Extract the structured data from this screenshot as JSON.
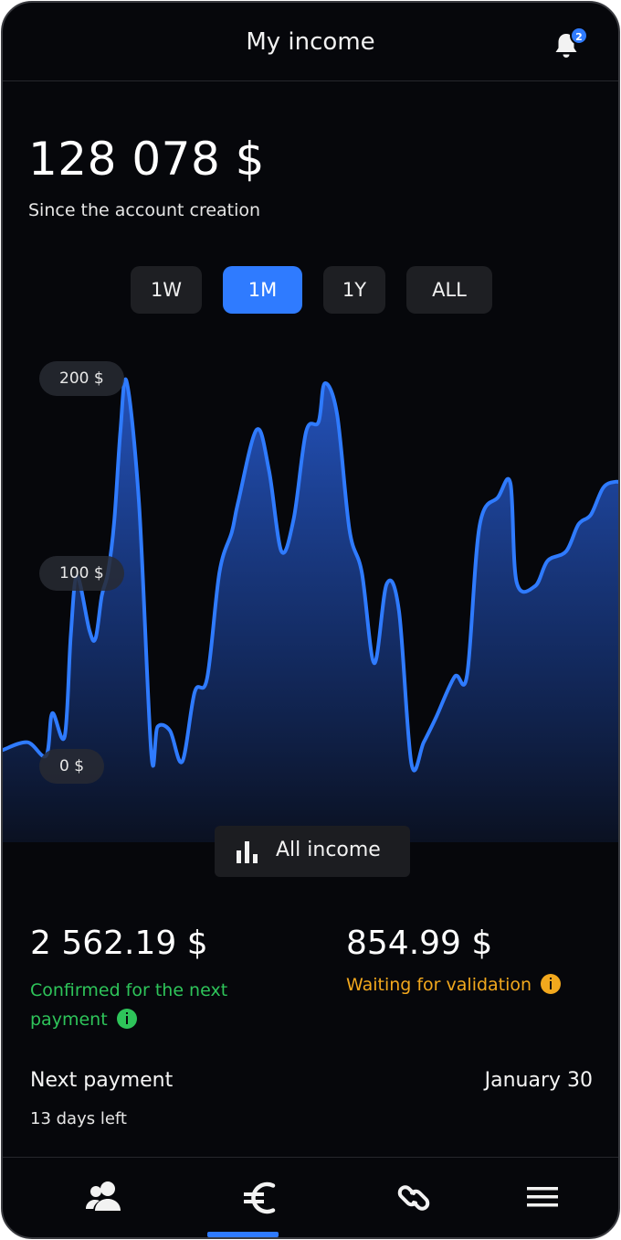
{
  "header": {
    "title": "My income",
    "notification_count": "2"
  },
  "summary": {
    "total": "128 078 $",
    "subtitle": "Since the account creation"
  },
  "range_tabs": [
    {
      "label": "1W",
      "active": false
    },
    {
      "label": "1M",
      "active": true
    },
    {
      "label": "1Y",
      "active": false
    },
    {
      "label": "ALL",
      "active": false
    }
  ],
  "chart_data": {
    "type": "area",
    "y_tick_labels": [
      "200 $",
      "100 $",
      "0 $"
    ],
    "ylim": [
      0,
      200
    ],
    "grid": false,
    "line_color": "#2f7bff",
    "points": [
      [
        0,
        8
      ],
      [
        4,
        12
      ],
      [
        7,
        5
      ],
      [
        8,
        27
      ],
      [
        10,
        15
      ],
      [
        11,
        68
      ],
      [
        12,
        98
      ],
      [
        14,
        70
      ],
      [
        15,
        66
      ],
      [
        16,
        88
      ],
      [
        17,
        100
      ],
      [
        18,
        126
      ],
      [
        19,
        173
      ],
      [
        20,
        199
      ],
      [
        22,
        136
      ],
      [
        24,
        6
      ],
      [
        25,
        20
      ],
      [
        27,
        18
      ],
      [
        29,
        2
      ],
      [
        31,
        38
      ],
      [
        33,
        45
      ],
      [
        35,
        100
      ],
      [
        37,
        121
      ],
      [
        38,
        136
      ],
      [
        41,
        174
      ],
      [
        43,
        153
      ],
      [
        45,
        111
      ],
      [
        47,
        128
      ],
      [
        49,
        173
      ],
      [
        51,
        178
      ],
      [
        52,
        198
      ],
      [
        54,
        182
      ],
      [
        56,
        122
      ],
      [
        58,
        100
      ],
      [
        60,
        53
      ],
      [
        62,
        94
      ],
      [
        64,
        80
      ],
      [
        66,
        1
      ],
      [
        68,
        12
      ],
      [
        70,
        25
      ],
      [
        73,
        46
      ],
      [
        75,
        47
      ],
      [
        77,
        124
      ],
      [
        80,
        139
      ],
      [
        82,
        146
      ],
      [
        83,
        95
      ],
      [
        86,
        93
      ],
      [
        88,
        106
      ],
      [
        91,
        111
      ],
      [
        93,
        125
      ],
      [
        95,
        130
      ],
      [
        97,
        144
      ],
      [
        99,
        147
      ],
      [
        100,
        146
      ]
    ]
  },
  "filter_button": {
    "label": "All income",
    "icon": "bar-chart-icon"
  },
  "payments": {
    "confirmed_amount": "2 562.19 $",
    "confirmed_label": "Confirmed for the next payment",
    "pending_amount": "854.99 $",
    "pending_label": "Waiting for validation",
    "next_payment_label": "Next payment",
    "next_payment_date": "January 30",
    "days_left": "13 days left"
  },
  "colors": {
    "accent": "#2f7bff",
    "confirmed": "#2ec45a",
    "pending": "#f2a81d",
    "background": "#06070b"
  },
  "bottom_nav": [
    {
      "icon": "users-icon",
      "active": false
    },
    {
      "icon": "euro-icon",
      "active": true
    },
    {
      "icon": "link-icon",
      "active": false
    },
    {
      "icon": "menu-icon",
      "active": false
    }
  ]
}
